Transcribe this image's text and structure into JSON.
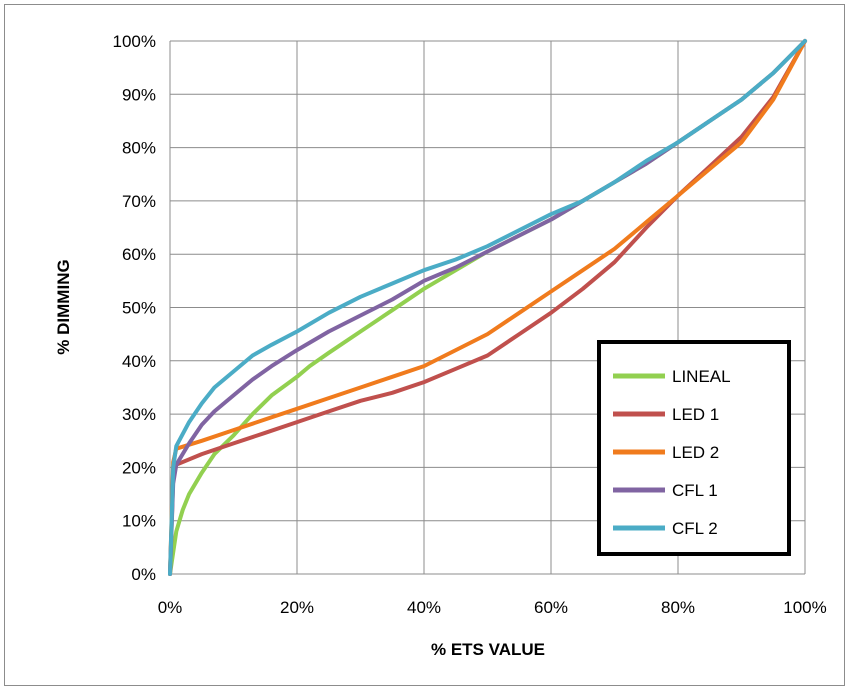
{
  "chart_data": {
    "type": "line",
    "title": "",
    "xlabel": "% ETS VALUE",
    "ylabel": "% DIMMING",
    "xlim": [
      0,
      100
    ],
    "ylim": [
      0,
      100
    ],
    "x_ticks": [
      "0%",
      "20%",
      "40%",
      "60%",
      "80%",
      "100%"
    ],
    "y_ticks": [
      "0%",
      "10%",
      "20%",
      "30%",
      "40%",
      "50%",
      "60%",
      "70%",
      "80%",
      "90%",
      "100%"
    ],
    "grid": true,
    "legend_position": "right",
    "series": [
      {
        "name": "LINEAL",
        "color": "#92d050",
        "x": [
          0,
          1,
          2,
          3,
          5,
          7,
          10,
          13,
          16,
          20,
          22,
          25,
          30,
          35,
          40,
          45,
          50,
          55,
          60,
          65,
          70,
          75,
          80,
          85,
          90,
          95,
          100
        ],
        "y": [
          0,
          8,
          12,
          15,
          19,
          22.5,
          26,
          30,
          33.5,
          37,
          39,
          41.5,
          45.5,
          49.5,
          53.5,
          57,
          60.5,
          63.5,
          66.5,
          70,
          73.5,
          77,
          81,
          85,
          89,
          94,
          100
        ]
      },
      {
        "name": "LED 1",
        "color": "#c0504d",
        "x": [
          0,
          0.5,
          1,
          5,
          10,
          15,
          20,
          25,
          30,
          35,
          40,
          45,
          50,
          55,
          60,
          65,
          70,
          75,
          80,
          85,
          90,
          95,
          100
        ],
        "y": [
          0,
          18,
          20.5,
          22.5,
          24.5,
          26.5,
          28.5,
          30.5,
          32.5,
          34,
          36,
          38.5,
          41,
          45,
          49,
          53.5,
          58.5,
          65,
          71,
          76.5,
          82,
          89.5,
          100
        ]
      },
      {
        "name": "LED 2",
        "color": "#f07b1d",
        "x": [
          0,
          0.5,
          1,
          5,
          10,
          15,
          20,
          25,
          30,
          35,
          40,
          45,
          50,
          55,
          60,
          65,
          70,
          75,
          80,
          85,
          90,
          95,
          100
        ],
        "y": [
          0,
          21,
          23.5,
          25,
          27,
          29,
          31,
          33,
          35,
          37,
          39,
          42,
          45,
          49,
          53,
          57,
          61,
          66,
          71,
          76,
          81,
          89,
          100
        ]
      },
      {
        "name": "CFL 1",
        "color": "#8064a2",
        "x": [
          0,
          0.5,
          1,
          3,
          5,
          7,
          10,
          13,
          16,
          20,
          25,
          30,
          35,
          40,
          45,
          50,
          55,
          60,
          65,
          70,
          75,
          80,
          85,
          90,
          95,
          100
        ],
        "y": [
          0,
          17,
          20.5,
          24.5,
          28,
          30.5,
          33.5,
          36.5,
          39,
          42,
          45.5,
          48.5,
          51.5,
          55,
          57.5,
          60.5,
          63.5,
          66.5,
          70,
          73.5,
          77,
          81,
          85,
          89,
          94,
          100
        ]
      },
      {
        "name": "CFL 2",
        "color": "#4bacc6",
        "x": [
          0,
          0.5,
          1,
          3,
          5,
          7,
          10,
          13,
          16,
          20,
          25,
          30,
          35,
          40,
          45,
          50,
          55,
          60,
          65,
          70,
          75,
          80,
          85,
          90,
          95,
          100
        ],
        "y": [
          0,
          20,
          24,
          28.5,
          32,
          35,
          38,
          41,
          43,
          45.5,
          49,
          52,
          54.5,
          57,
          59,
          61.5,
          64.5,
          67.5,
          70,
          73.5,
          77.5,
          81,
          85,
          89,
          94,
          100
        ]
      }
    ]
  }
}
